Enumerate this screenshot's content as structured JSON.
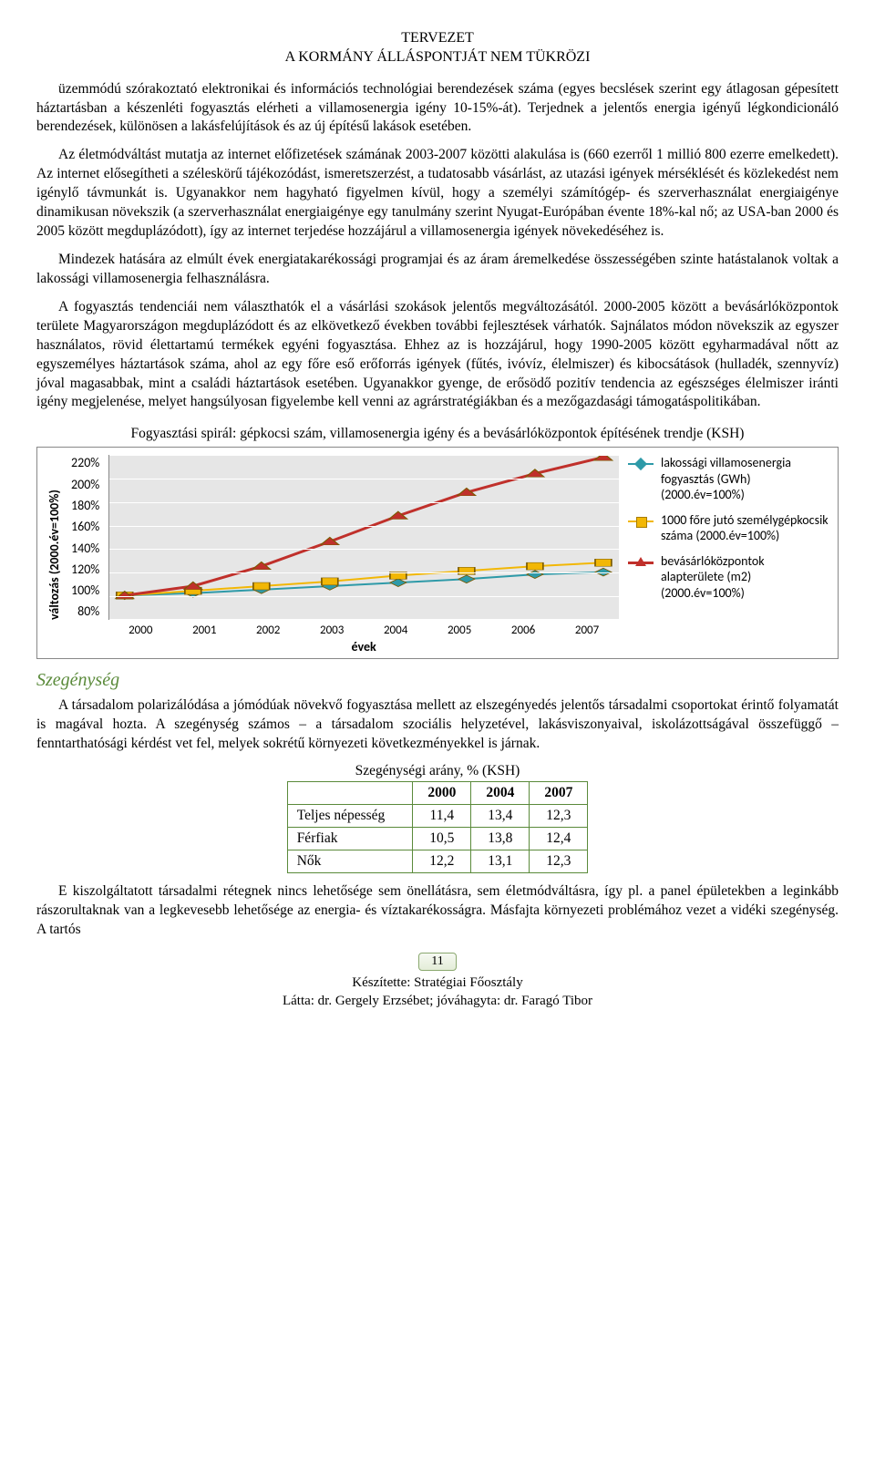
{
  "header": {
    "line1": "TERVEZET",
    "line2": "A KORMÁNY ÁLLÁSPONTJÁT NEM TÜKRÖZI"
  },
  "paragraphs": {
    "p1": "üzemmódú szórakoztató elektronikai és információs technológiai berendezések száma (egyes becslések szerint egy átlagosan gépesített háztartásban a készenléti fogyasztás elérheti a villamosenergia igény 10-15%-át). Terjednek a jelentős energia igényű légkondicionáló berendezések, különösen a lakásfelújítások és az új építésű lakások esetében.",
    "p2": "Az életmódváltást mutatja az internet előfizetések számának 2003-2007 közötti alakulása is (660 ezerről 1 millió 800 ezerre emelkedett). Az internet elősegítheti a széleskörű tájékozódást, ismeretszerzést, a tudatosabb vásárlást, az utazási igények mérséklését és közlekedést nem igénylő távmunkát is. Ugyanakkor nem hagyható figyelmen kívül, hogy a személyi számítógép- és szerverhasználat energiaigénye dinamikusan növekszik (a szerverhasználat energiaigénye egy tanulmány szerint Nyugat-Európában évente 18%-kal nő; az USA-ban 2000 és 2005 között megduplázódott), így az internet terjedése hozzájárul a villamosenergia igények növekedéséhez is.",
    "p3": "Mindezek hatására az elmúlt évek energiatakarékossági programjai és az áram áremelkedése összességében szinte hatástalanok voltak a lakossági villamosenergia felhasználásra.",
    "p4": "A fogyasztás tendenciái nem választhatók el a vásárlási szokások jelentős megváltozásától. 2000-2005 között a bevásárlóközpontok területe Magyarországon megduplázódott és az elkövetkező években további fejlesztések várhatók. Sajnálatos módon növekszik az egyszer használatos, rövid élettartamú termékek egyéni fogyasztása. Ehhez az is hozzájárul, hogy 1990-2005 között egyharmadával nőtt az egyszemélyes háztartások száma, ahol az egy főre eső erőforrás igények (fűtés, ivóvíz, élelmiszer) és kibocsátások (hulladék, szennyvíz) jóval magasabbak, mint a családi háztartások esetében. Ugyanakkor gyenge, de erősödő pozitív tendencia az egészséges élelmiszer iránti igény megjelenése, melyet hangsúlyosan figyelembe kell venni az agrárstratégiákban és a mezőgazdasági támogatáspolitikában.",
    "p5": "A társadalom polarizálódása a jómódúak növekvő fogyasztása mellett az elszegényedés jelentős társadalmi csoportokat érintő folyamatát is magával hozta. A szegénység számos – a társadalom szociális helyzetével, lakásviszonyaival, iskolázottságával összefüggő – fenntarthatósági kérdést vet fel, melyek sokrétű környezeti következményekkel is járnak.",
    "p6": "E kiszolgáltatott társadalmi rétegnek nincs lehetősége sem önellátásra, sem életmódváltásra, így pl. a panel épületekben a leginkább rászorultaknak van a legkevesebb lehetősége az energia- és víztakarékosságra. Másfajta környezeti problémához vezet a vidéki szegénység. A tartós"
  },
  "chart": {
    "title": "Fogyasztási spirál: gépkocsi szám, villamosenergia igény és a bevásárlóközpontok építésének trendje (KSH)",
    "y_label": "változás (2000.év=100%)",
    "x_label": "évek",
    "y_min": 80,
    "y_max": 220,
    "y_step": 20,
    "y_ticks": [
      "220%",
      "200%",
      "180%",
      "160%",
      "140%",
      "120%",
      "100%",
      "80%"
    ],
    "x_ticks": [
      "2000",
      "2001",
      "2002",
      "2003",
      "2004",
      "2005",
      "2006",
      "2007"
    ],
    "plot_bg": "#e6e6e6",
    "grid_color": "#ffffff",
    "series": [
      {
        "name": "lakossági villamosenergia fogyasztás (GWh) (2000.év=100%)",
        "color": "#2e9aa8",
        "marker": "diamond",
        "line_width": 2,
        "values": [
          100,
          102,
          105,
          108,
          111,
          114,
          118,
          120
        ]
      },
      {
        "name": "1000 főre jutó személygépkocsik száma (2000.év=100%)",
        "color": "#f2b705",
        "marker": "square",
        "line_width": 2,
        "values": [
          100,
          104,
          108,
          112,
          117,
          121,
          125,
          128
        ]
      },
      {
        "name": "bevásárlóközpontok alapterülete (m2) (2000.év=100%)",
        "color": "#c0302b",
        "marker": "triangle",
        "line_width": 3,
        "values": [
          100,
          108,
          125,
          146,
          168,
          188,
          204,
          218
        ]
      }
    ]
  },
  "section_heading": "Szegénység",
  "poverty_table": {
    "title": "Szegénységi arány, % (KSH)",
    "border_color": "#5a8a3a",
    "years": [
      "2000",
      "2004",
      "2007"
    ],
    "rows": [
      {
        "label": "Teljes népesség",
        "cells": [
          "11,4",
          "13,4",
          "12,3"
        ]
      },
      {
        "label": "Férfiak",
        "cells": [
          "10,5",
          "13,8",
          "12,4"
        ]
      },
      {
        "label": "Nők",
        "cells": [
          "12,2",
          "13,1",
          "12,3"
        ]
      }
    ]
  },
  "page_number": "11",
  "footer": {
    "line1": "Készítette: Stratégiai Főosztály",
    "line2": "Látta: dr. Gergely Erzsébet; jóváhagyta: dr. Faragó Tibor"
  }
}
